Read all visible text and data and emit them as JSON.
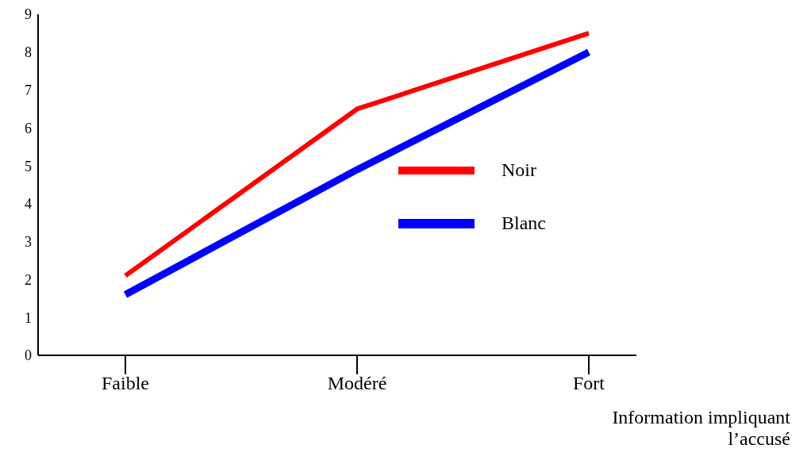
{
  "chart_data": {
    "type": "line",
    "xlabel": "Information impliquant l’accusé",
    "categories": [
      "Faible",
      "Modéré",
      "Fort"
    ],
    "series": [
      {
        "name": "Noir",
        "color": "#ff0000",
        "values": [
          2.1,
          6.5,
          8.5
        ]
      },
      {
        "name": "Blanc",
        "color": "#0000ff",
        "values": [
          1.6,
          4.9,
          8.0
        ]
      }
    ],
    "ylim": [
      0,
      9
    ],
    "yticks": [
      0,
      1,
      2,
      3,
      4,
      5,
      6,
      7,
      8,
      9
    ],
    "grid": false,
    "legend": "right",
    "marker": "none",
    "line_style": "solid"
  }
}
